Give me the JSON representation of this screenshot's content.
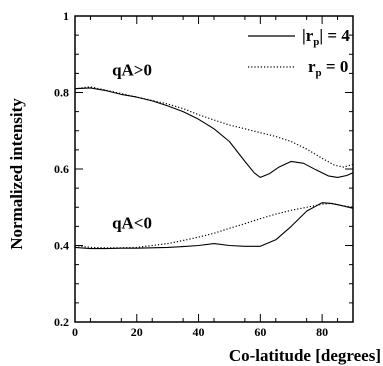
{
  "chart_data": {
    "type": "line",
    "title": "",
    "xlabel": "Co-latitude [degrees]",
    "ylabel": "Normalized intensity",
    "xlim": [
      0,
      90
    ],
    "ylim": [
      0.2,
      1.0
    ],
    "x_ticks": [
      0,
      20,
      40,
      60,
      80
    ],
    "y_ticks": [
      0.2,
      0.4,
      0.6,
      0.8,
      1.0
    ],
    "x_tick_labels": [
      "0",
      "20",
      "40",
      "60",
      "80"
    ],
    "y_tick_labels": [
      "0.2",
      "0.4",
      "0.6",
      "0.8",
      "1"
    ],
    "grid": false,
    "legend_position": "top-right",
    "legend": [
      {
        "series_key": "rp4",
        "label_prefix": "|r",
        "label_sub": "p",
        "label_suffix": "| = 4",
        "style": "solid"
      },
      {
        "series_key": "rp0",
        "label_prefix": "r",
        "label_sub": "p",
        "label_suffix": " = 0",
        "style": "dotted"
      }
    ],
    "annotations": [
      {
        "text": "qA>0",
        "x": 12,
        "y": 0.845
      },
      {
        "text": "qA<0",
        "x": 12,
        "y": 0.445
      }
    ],
    "series": [
      {
        "key": "rp4",
        "group": "qA>0",
        "style": "solid",
        "points": [
          [
            0,
            0.81
          ],
          [
            5,
            0.812
          ],
          [
            10,
            0.805
          ],
          [
            15,
            0.795
          ],
          [
            20,
            0.788
          ],
          [
            25,
            0.778
          ],
          [
            30,
            0.765
          ],
          [
            35,
            0.75
          ],
          [
            40,
            0.73
          ],
          [
            45,
            0.705
          ],
          [
            50,
            0.672
          ],
          [
            55,
            0.62
          ],
          [
            58,
            0.59
          ],
          [
            60,
            0.578
          ],
          [
            63,
            0.588
          ],
          [
            66,
            0.605
          ],
          [
            70,
            0.62
          ],
          [
            74,
            0.615
          ],
          [
            78,
            0.598
          ],
          [
            82,
            0.582
          ],
          [
            85,
            0.578
          ],
          [
            88,
            0.583
          ],
          [
            90,
            0.59
          ]
        ]
      },
      {
        "key": "rp0",
        "group": "qA>0",
        "style": "dotted",
        "points": [
          [
            0,
            0.81
          ],
          [
            5,
            0.815
          ],
          [
            10,
            0.806
          ],
          [
            15,
            0.797
          ],
          [
            20,
            0.788
          ],
          [
            25,
            0.779
          ],
          [
            30,
            0.77
          ],
          [
            35,
            0.758
          ],
          [
            40,
            0.742
          ],
          [
            45,
            0.728
          ],
          [
            50,
            0.715
          ],
          [
            55,
            0.705
          ],
          [
            60,
            0.695
          ],
          [
            65,
            0.685
          ],
          [
            70,
            0.672
          ],
          [
            75,
            0.652
          ],
          [
            80,
            0.628
          ],
          [
            84,
            0.61
          ],
          [
            87,
            0.605
          ],
          [
            90,
            0.612
          ]
        ]
      },
      {
        "key": "rp4",
        "group": "qA<0",
        "style": "solid",
        "points": [
          [
            0,
            0.395
          ],
          [
            5,
            0.392
          ],
          [
            10,
            0.392
          ],
          [
            15,
            0.393
          ],
          [
            20,
            0.393
          ],
          [
            25,
            0.394
          ],
          [
            30,
            0.395
          ],
          [
            35,
            0.397
          ],
          [
            40,
            0.4
          ],
          [
            45,
            0.405
          ],
          [
            50,
            0.4
          ],
          [
            55,
            0.398
          ],
          [
            60,
            0.398
          ],
          [
            65,
            0.415
          ],
          [
            70,
            0.45
          ],
          [
            75,
            0.49
          ],
          [
            80,
            0.512
          ],
          [
            83,
            0.51
          ],
          [
            86,
            0.505
          ],
          [
            90,
            0.497
          ]
        ]
      },
      {
        "key": "rp0",
        "group": "qA<0",
        "style": "dotted",
        "points": [
          [
            0,
            0.4
          ],
          [
            5,
            0.395
          ],
          [
            10,
            0.394
          ],
          [
            15,
            0.394
          ],
          [
            20,
            0.395
          ],
          [
            25,
            0.4
          ],
          [
            30,
            0.405
          ],
          [
            35,
            0.413
          ],
          [
            40,
            0.422
          ],
          [
            45,
            0.432
          ],
          [
            50,
            0.445
          ],
          [
            55,
            0.457
          ],
          [
            60,
            0.47
          ],
          [
            65,
            0.482
          ],
          [
            70,
            0.492
          ],
          [
            75,
            0.5
          ],
          [
            80,
            0.508
          ],
          [
            83,
            0.51
          ],
          [
            86,
            0.505
          ],
          [
            90,
            0.5
          ]
        ]
      }
    ]
  }
}
